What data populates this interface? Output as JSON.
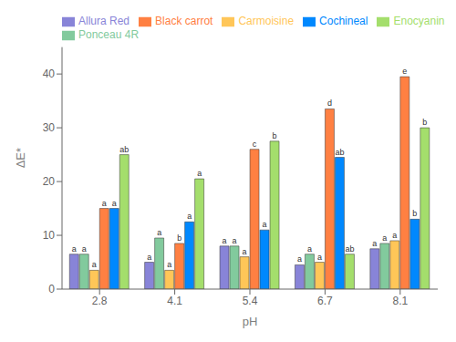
{
  "chart_data": {
    "type": "bar",
    "xlabel": "pH",
    "ylabel": "ΔE*",
    "categories": [
      "2.8",
      "4.1",
      "5.4",
      "6.7",
      "8.1"
    ],
    "series": [
      {
        "name": "Allura Red",
        "color": "#8884d8",
        "values": [
          6.5,
          5.0,
          8.0,
          4.5,
          7.5
        ],
        "annotations": [
          "a",
          "a",
          "a",
          "a",
          "a"
        ]
      },
      {
        "name": "Ponceau 4R",
        "color": "#82ca9d",
        "values": [
          6.5,
          9.5,
          8.0,
          6.5,
          8.5
        ],
        "annotations": [
          "a",
          "a",
          "a",
          "a",
          "a"
        ]
      },
      {
        "name": "Carmoisine",
        "color": "#ffc658",
        "values": [
          3.5,
          3.5,
          6.0,
          5.0,
          9.0
        ],
        "annotations": [
          "a",
          "a",
          "a",
          "a",
          "a"
        ]
      },
      {
        "name": "Black carrot",
        "color": "#ff8042",
        "values": [
          15.0,
          8.5,
          26.0,
          33.5,
          39.5
        ],
        "annotations": [
          "a",
          "b",
          "c",
          "d",
          "e"
        ]
      },
      {
        "name": "Cochineal",
        "color": "#0088fe",
        "values": [
          15.0,
          12.5,
          11.0,
          24.5,
          13.0
        ],
        "annotations": [
          "a",
          "a",
          "a",
          "ab",
          "b"
        ]
      },
      {
        "name": "Enocyanin",
        "color": "#a4de6c",
        "values": [
          25.0,
          20.5,
          27.5,
          6.5,
          30.0
        ],
        "annotations": [
          "ab",
          "a",
          "b",
          "ab",
          "b"
        ]
      }
    ],
    "ylim": [
      0,
      45
    ],
    "yticks": [
      0,
      10,
      20,
      30,
      40
    ],
    "grid": false,
    "legend": "upper left"
  }
}
